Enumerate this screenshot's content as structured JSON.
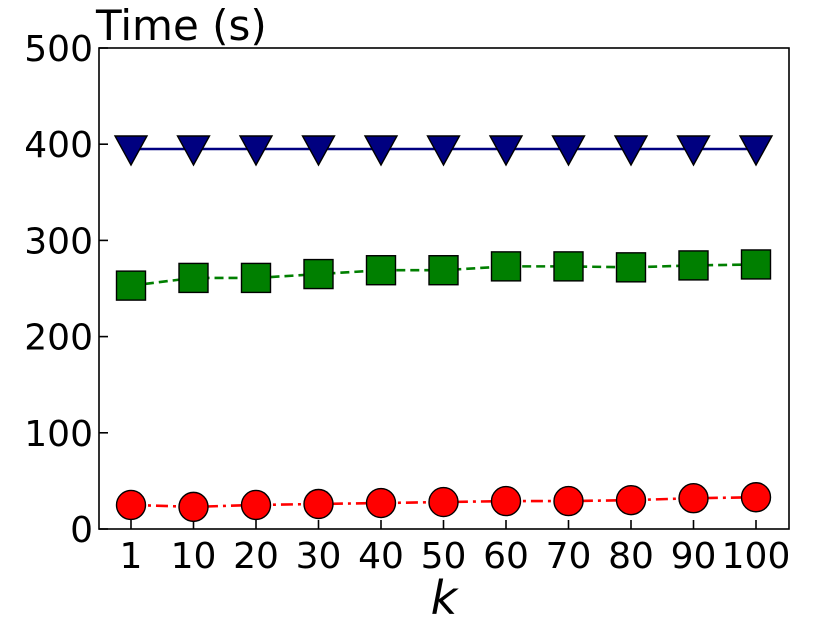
{
  "chart_data": {
    "type": "line",
    "title": "Time (s)",
    "xlabel": "k",
    "ylabel": "",
    "categories": [
      "1",
      "10",
      "20",
      "30",
      "40",
      "50",
      "60",
      "70",
      "80",
      "90",
      "100"
    ],
    "ylim": [
      0,
      500
    ],
    "yticks": [
      0,
      100,
      200,
      300,
      400,
      500
    ],
    "grid": false,
    "series": [
      {
        "color": "#000080",
        "marker": "triangle-down",
        "line_style": "solid",
        "values": [
          395,
          395,
          395,
          395,
          395,
          395,
          395,
          395,
          395,
          395,
          395
        ]
      },
      {
        "color": "#007f00",
        "marker": "square",
        "line_style": "dashed",
        "values": [
          253,
          261,
          261,
          265,
          269,
          269,
          273,
          273,
          272,
          274,
          275
        ]
      },
      {
        "color": "#ff0000",
        "marker": "circle",
        "line_style": "dash-dot",
        "values": [
          25,
          23,
          25,
          26,
          27,
          28,
          29,
          29,
          30,
          32,
          33
        ]
      }
    ]
  }
}
